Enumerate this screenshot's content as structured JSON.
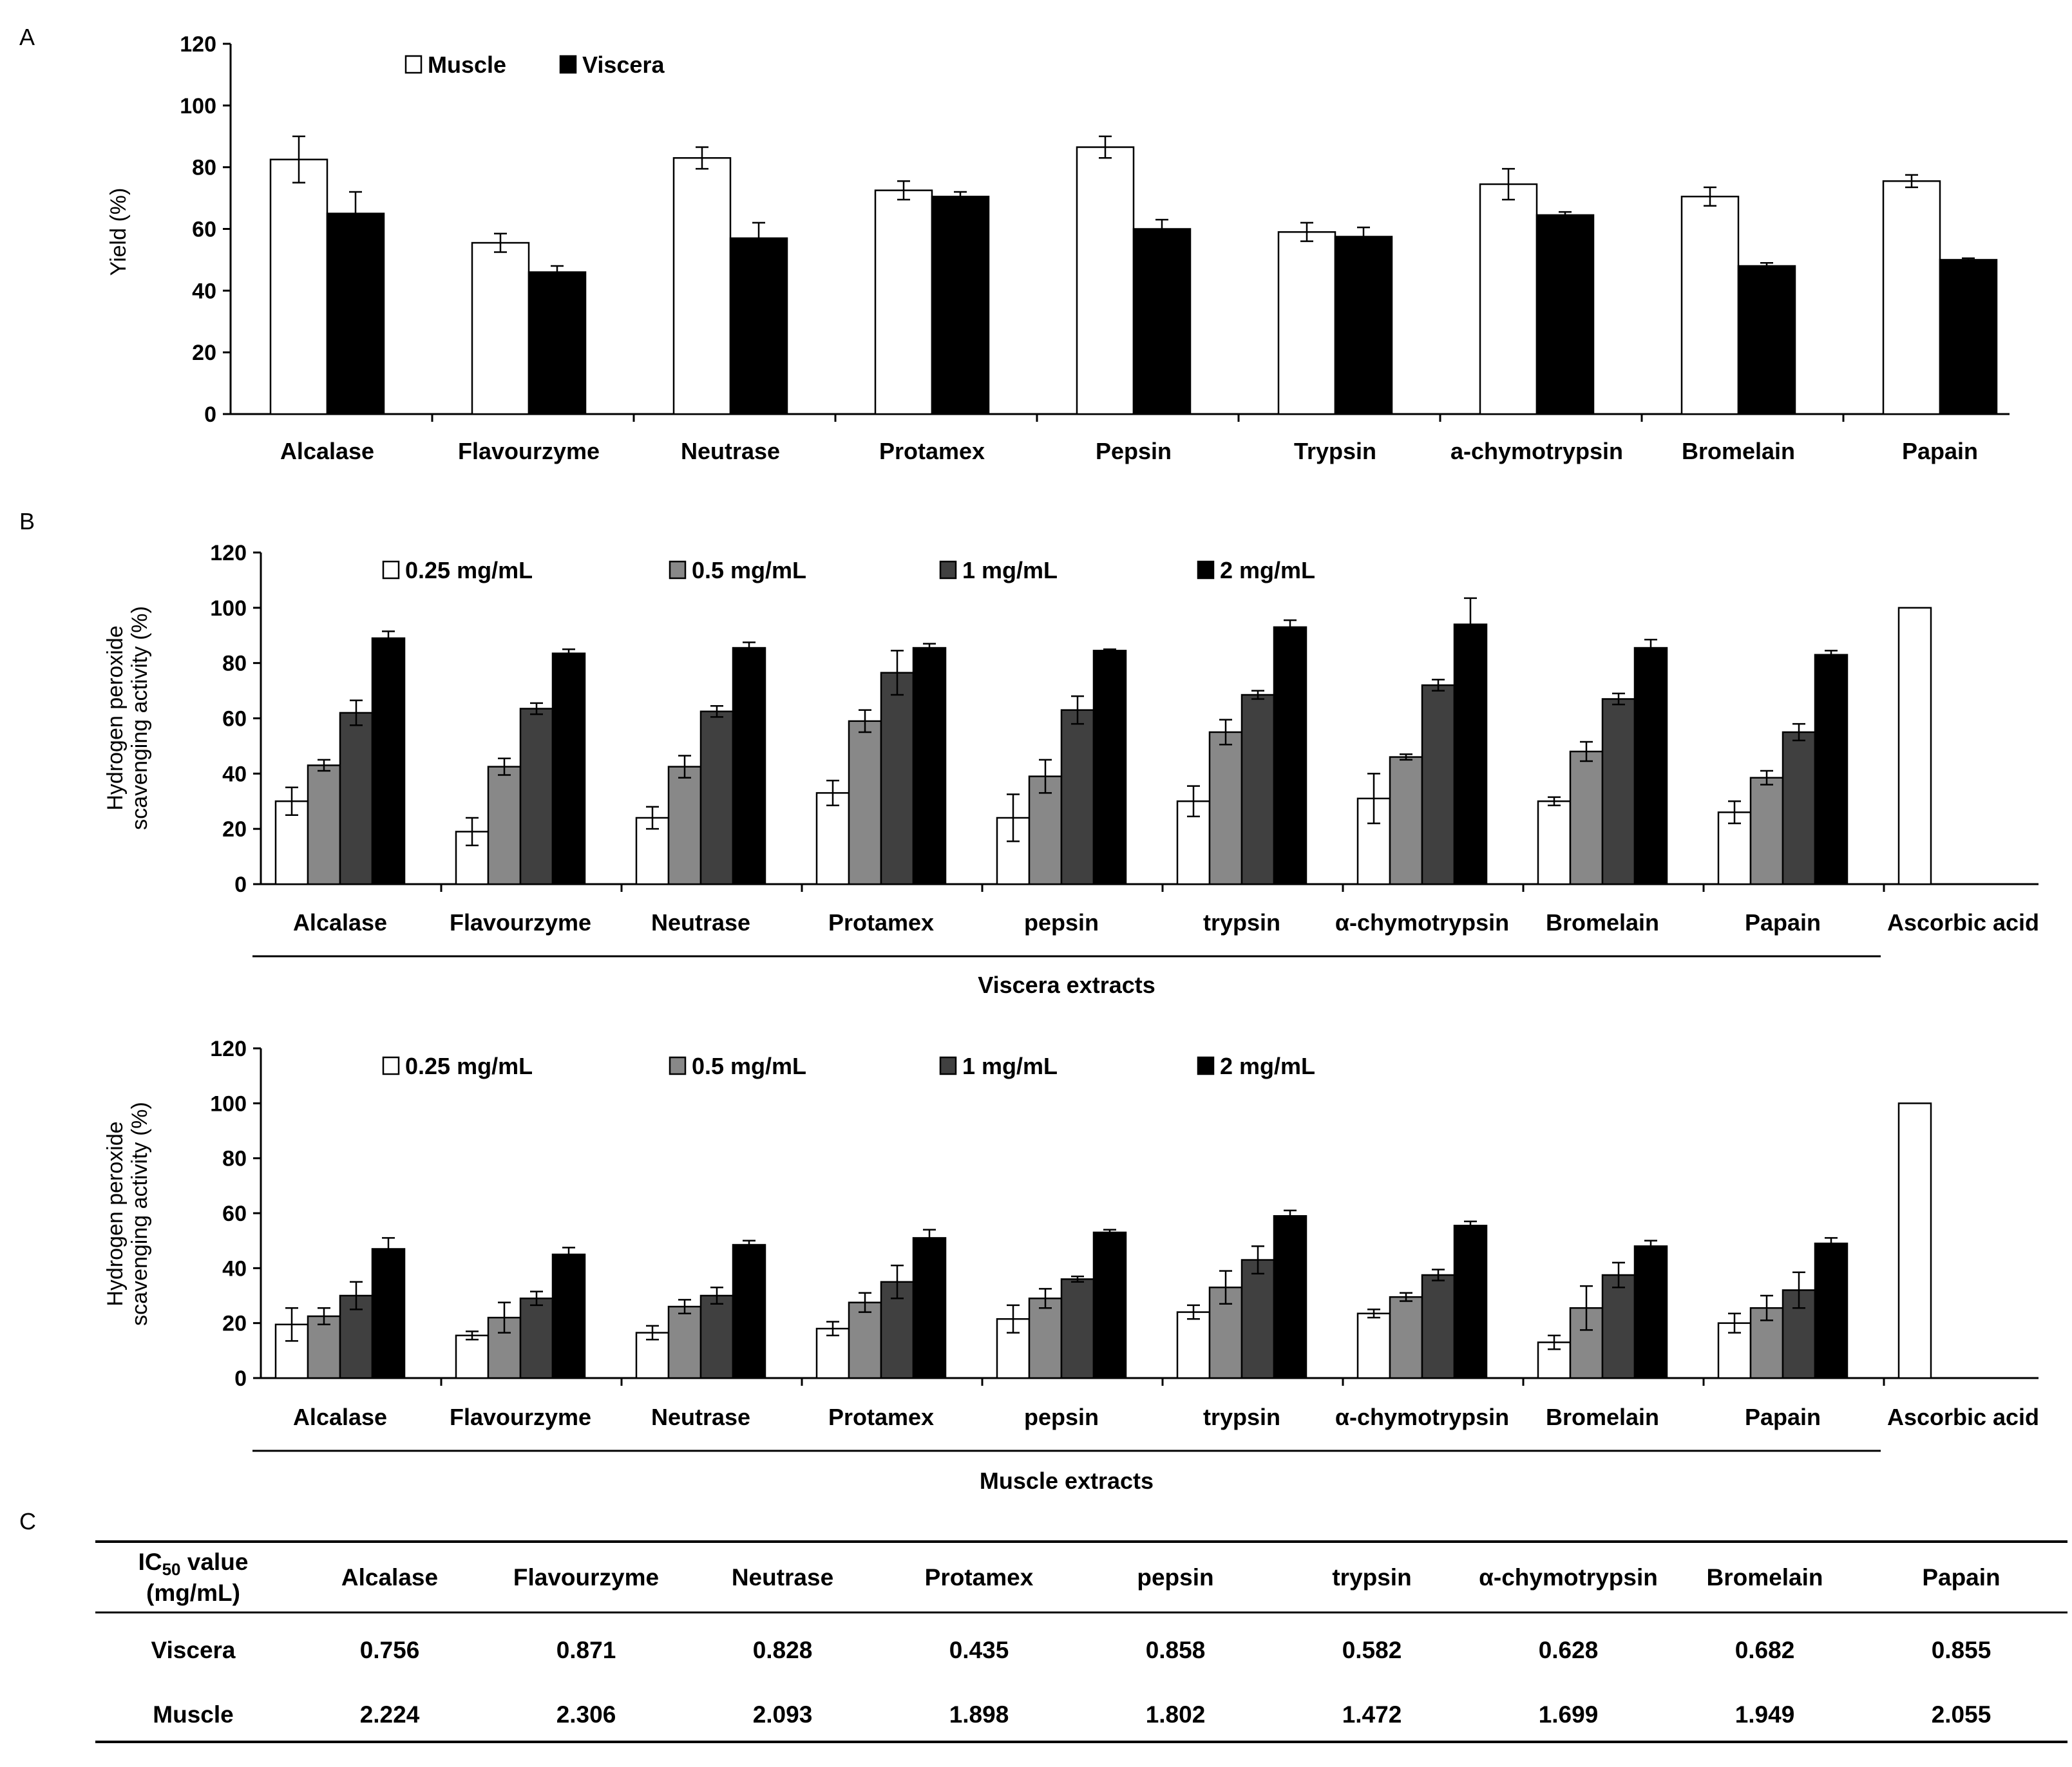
{
  "panels": {
    "a": "A",
    "b": "B",
    "c": "C"
  },
  "chart_data": [
    {
      "id": "A",
      "type": "bar",
      "categories": [
        "Alcalase",
        "Flavourzyme",
        "Neutrase",
        "Protamex",
        "Pepsin",
        "Trypsin",
        "a-chymotrypsin",
        "Bromelain",
        "Papain"
      ],
      "series": [
        {
          "name": "Muscle",
          "color": "#ffffff",
          "values": [
            82.5,
            55.5,
            83,
            72.5,
            86.5,
            59,
            74.5,
            70.5,
            75.5
          ],
          "errors": [
            7.5,
            3,
            3.5,
            3,
            3.5,
            3,
            5,
            3,
            2
          ]
        },
        {
          "name": "Viscera",
          "color": "#000000",
          "values": [
            65,
            46,
            57,
            70.5,
            60,
            57.5,
            64.5,
            48,
            50
          ],
          "errors": [
            7,
            2,
            5,
            1.5,
            3,
            3,
            1,
            1,
            0.5
          ]
        }
      ],
      "ylabel": "Yield (%)",
      "ylim": [
        0,
        120
      ],
      "yticks": [
        0,
        20,
        40,
        60,
        80,
        100,
        120
      ]
    },
    {
      "id": "B-viscera",
      "type": "bar",
      "categories": [
        "Alcalase",
        "Flavourzyme",
        "Neutrase",
        "Protamex",
        "pepsin",
        "trypsin",
        "α-chymotrypsin",
        "Bromelain",
        "Papain",
        "Ascorbic acid"
      ],
      "series": [
        {
          "name": "0.25 mg/mL",
          "color": "#ffffff",
          "values": [
            30,
            19,
            24,
            33,
            24,
            30,
            31,
            30,
            26,
            100
          ],
          "errors": [
            5,
            5,
            4,
            4.5,
            8.5,
            5.5,
            9,
            1.5,
            4,
            0
          ]
        },
        {
          "name": "0.5 mg/mL",
          "color": "#888888",
          "values": [
            43,
            42.5,
            42.5,
            59,
            39,
            55,
            46,
            48,
            38.5,
            null
          ],
          "errors": [
            2,
            3,
            4,
            4,
            6,
            4.5,
            1,
            3.5,
            2.5,
            0
          ]
        },
        {
          "name": "1 mg/mL",
          "color": "#404040",
          "values": [
            62,
            63.5,
            62.5,
            76.5,
            63,
            68.5,
            72,
            67,
            55,
            null
          ],
          "errors": [
            4.5,
            2,
            2,
            8,
            5,
            1.5,
            2,
            2,
            3,
            0
          ]
        },
        {
          "name": "2 mg/mL",
          "color": "#000000",
          "values": [
            89,
            83.5,
            85.5,
            85.5,
            84.5,
            93,
            94,
            85.5,
            83,
            null
          ],
          "errors": [
            2.5,
            1.5,
            2,
            1.5,
            0.5,
            2.5,
            9.5,
            3,
            1.5,
            0
          ]
        }
      ],
      "ylabel_line1": "Hydrogen peroxide",
      "ylabel_line2": "scavenging activity (%)",
      "group_label": "Viscera extracts",
      "ylim": [
        0,
        120
      ],
      "yticks": [
        0,
        20,
        40,
        60,
        80,
        100,
        120
      ]
    },
    {
      "id": "B-muscle",
      "type": "bar",
      "categories": [
        "Alcalase",
        "Flavourzyme",
        "Neutrase",
        "Protamex",
        "pepsin",
        "trypsin",
        "α-chymotrypsin",
        "Bromelain",
        "Papain",
        "Ascorbic acid"
      ],
      "series": [
        {
          "name": "0.25 mg/mL",
          "color": "#ffffff",
          "values": [
            19.5,
            15.5,
            16.5,
            18,
            21.5,
            24,
            23.5,
            13,
            20,
            100
          ],
          "errors": [
            6,
            1.5,
            2.5,
            2.5,
            5,
            2.5,
            1.5,
            2.5,
            3.5,
            0
          ]
        },
        {
          "name": "0.5 mg/mL",
          "color": "#888888",
          "values": [
            22.5,
            22,
            26,
            27.5,
            29,
            33,
            29.5,
            25.5,
            25.5,
            null
          ],
          "errors": [
            3,
            5.5,
            2.5,
            3.5,
            3.5,
            6,
            1.5,
            8,
            4.5,
            0
          ]
        },
        {
          "name": "1 mg/mL",
          "color": "#404040",
          "values": [
            30,
            29,
            30,
            35,
            36,
            43,
            37.5,
            37.5,
            32,
            null
          ],
          "errors": [
            5,
            2.5,
            3,
            6,
            1,
            5,
            2,
            4.5,
            6.5,
            0
          ]
        },
        {
          "name": "2 mg/mL",
          "color": "#000000",
          "values": [
            47,
            45,
            48.5,
            51,
            53,
            59,
            55.5,
            48,
            49,
            null
          ],
          "errors": [
            4,
            2.5,
            1.5,
            3,
            1,
            2,
            1.5,
            2,
            2,
            0
          ]
        }
      ],
      "ylabel_line1": "Hydrogen peroxide",
      "ylabel_line2": "scavenging activity (%)",
      "group_label": "Muscle extracts",
      "ylim": [
        0,
        120
      ],
      "yticks": [
        0,
        20,
        40,
        60,
        80,
        100,
        120
      ]
    },
    {
      "id": "C",
      "type": "table",
      "header_label_main": "IC",
      "header_label_sub": "50",
      "header_label_rest": " value",
      "header_label_unit": "(mg/mL)",
      "columns": [
        "Alcalase",
        "Flavourzyme",
        "Neutrase",
        "Protamex",
        "pepsin",
        "trypsin",
        "α-chymotrypsin",
        "Bromelain",
        "Papain"
      ],
      "rows": [
        {
          "label": "Viscera",
          "values": [
            "0.756",
            "0.871",
            "0.828",
            "0.435",
            "0.858",
            "0.582",
            "0.628",
            "0.682",
            "0.855"
          ]
        },
        {
          "label": "Muscle",
          "values": [
            "2.224",
            "2.306",
            "2.093",
            "1.898",
            "1.802",
            "1.472",
            "1.699",
            "1.949",
            "2.055"
          ]
        }
      ]
    }
  ]
}
